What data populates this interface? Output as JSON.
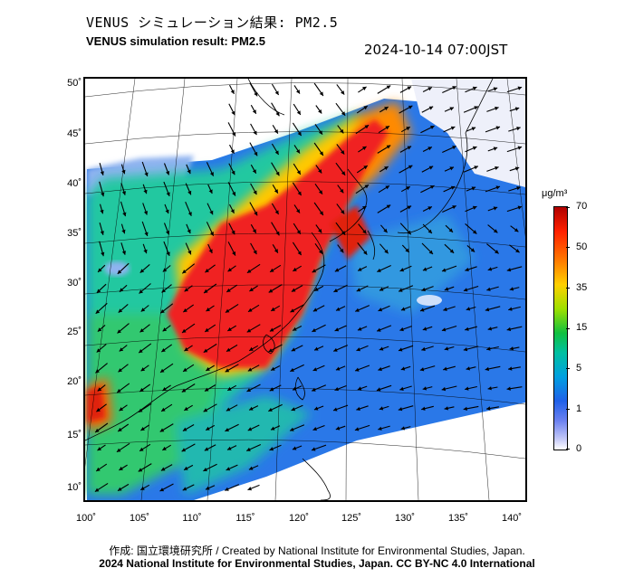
{
  "header": {
    "title_jp": "VENUS シミュレーション結果: PM2.5",
    "title_en": "VENUS simulation result: PM2.5",
    "timestamp": "2024-10-14 07:00JST"
  },
  "map": {
    "lat_labels": [
      "50˚",
      "45˚",
      "40˚",
      "35˚",
      "30˚",
      "25˚",
      "20˚",
      "15˚",
      "10˚"
    ],
    "lon_labels": [
      "100˚",
      "105˚",
      "110˚",
      "115˚",
      "120˚",
      "125˚",
      "130˚",
      "135˚",
      "140˚"
    ]
  },
  "colorbar": {
    "unit": "μg/m³",
    "labels": [
      "70",
      "50",
      "35",
      "15",
      "5",
      "1",
      "0"
    ],
    "colors": [
      "#b00000",
      "#ff2000",
      "#ff7a00",
      "#ffd000",
      "#9ee000",
      "#10c040",
      "#00c0a0",
      "#00a0e0",
      "#2060e8",
      "#6a80f0",
      "#c8ccf8",
      "#ffffff"
    ]
  },
  "footer": {
    "credit_line1": "作成: 国立環境研究所 / Created by National Institute for Environmental Studies, Japan.",
    "credit_line2": "2024 National Institute for Environmental Studies, Japan. CC BY-NC 4.0 International"
  }
}
